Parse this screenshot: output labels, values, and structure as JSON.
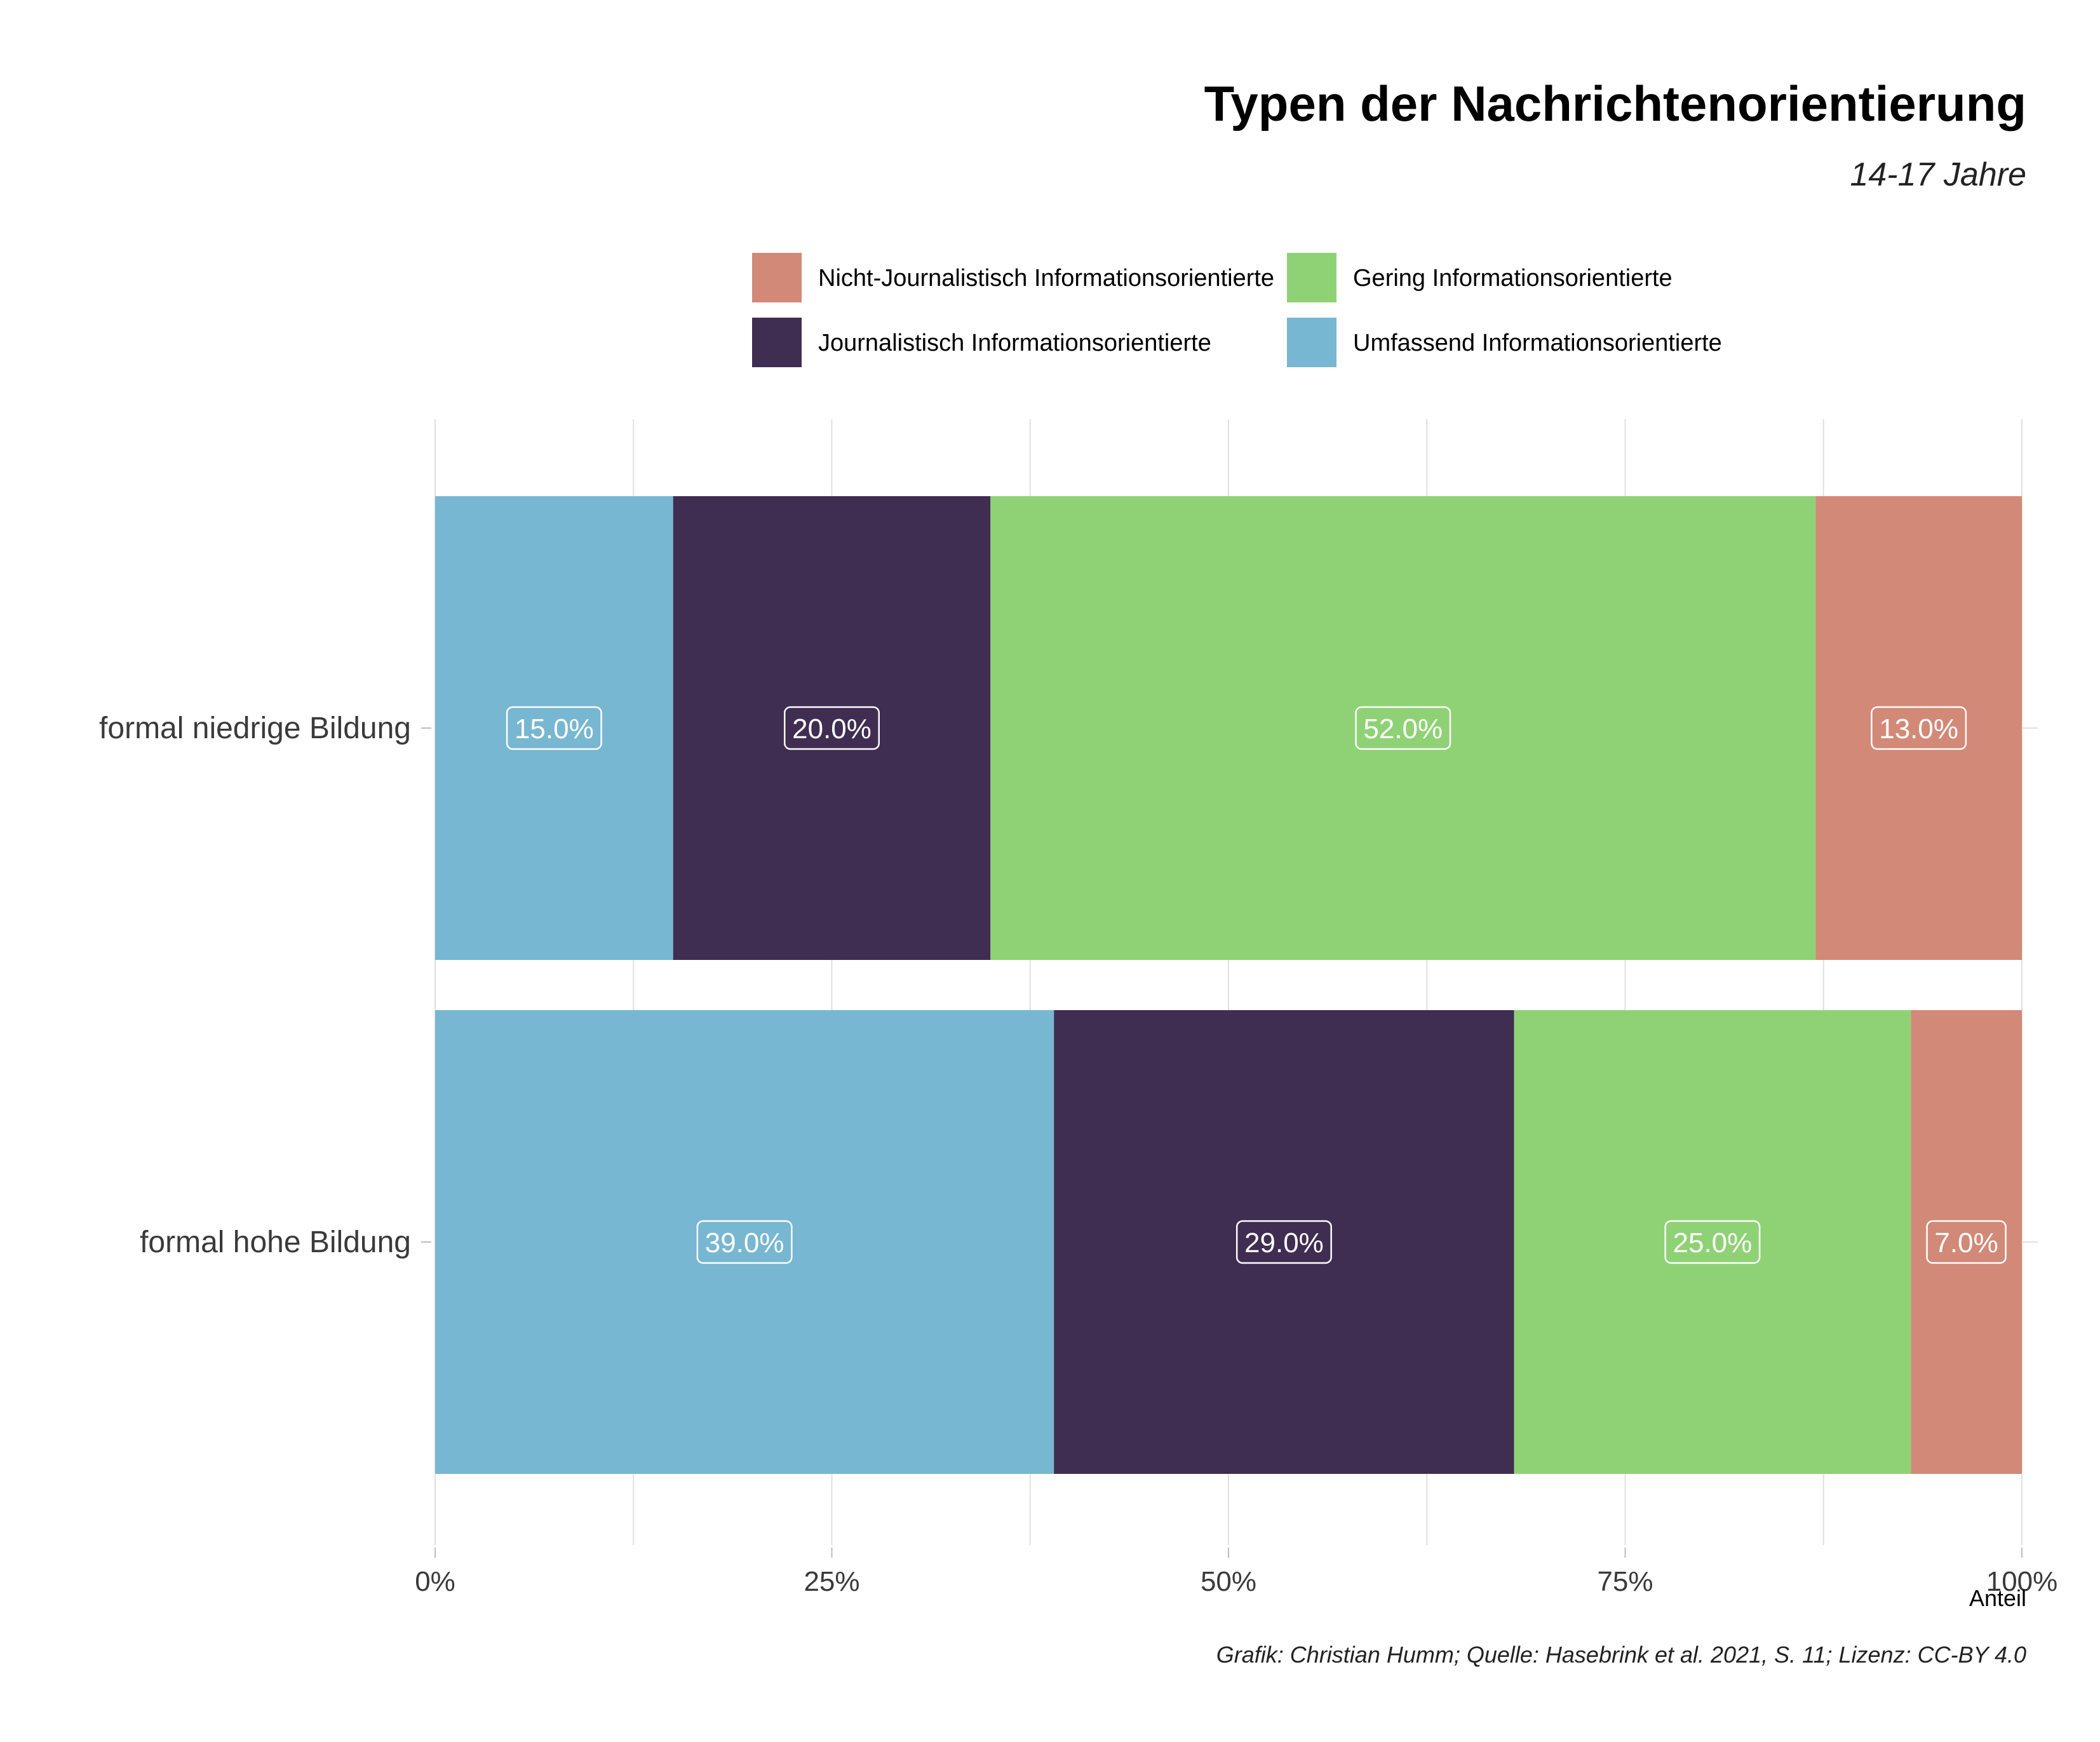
{
  "chart_data": {
    "type": "bar",
    "orientation": "horizontal",
    "stacked": true,
    "title": "Typen der Nachrichtenorientierung",
    "subtitle": "14-17 Jahre",
    "xlabel": "Anteil",
    "ylabel": "",
    "xlim": [
      0,
      100
    ],
    "x_ticks": [
      "0%",
      "25%",
      "50%",
      "75%",
      "100%"
    ],
    "categories": [
      "formal niedrige Bildung",
      "formal hohe Bildung"
    ],
    "series": [
      {
        "name": "Umfassend Informationsorientierte",
        "color": "#77b7d1",
        "values": [
          15.0,
          39.0
        ],
        "labels": [
          "15.0%",
          "39.0%"
        ]
      },
      {
        "name": "Journalistisch Informationsorientierte",
        "color": "#3f2d52",
        "values": [
          20.0,
          29.0
        ],
        "labels": [
          "20.0%",
          "29.0%"
        ]
      },
      {
        "name": "Gering Informationsorientierte",
        "color": "#8fd275",
        "values": [
          52.0,
          25.0
        ],
        "labels": [
          "52.0%",
          "25.0%"
        ]
      },
      {
        "name": "Nicht-Journalistisch Informationsorientierte",
        "color": "#d28977",
        "values": [
          13.0,
          7.0
        ],
        "labels": [
          "13.0%",
          "7.0%"
        ]
      }
    ],
    "legend": [
      "Nicht-Journalistisch Informationsorientierte",
      "Gering Informationsorientierte",
      "Journalistisch Informationsorientierte",
      "Umfassend Informationsorientierte"
    ],
    "legend_position": "top",
    "grid": true,
    "caption": "Grafik: Christian Humm; Quelle: Hasebrink et al. 2021, S. 11; Lizenz: CC-BY 4.0"
  }
}
